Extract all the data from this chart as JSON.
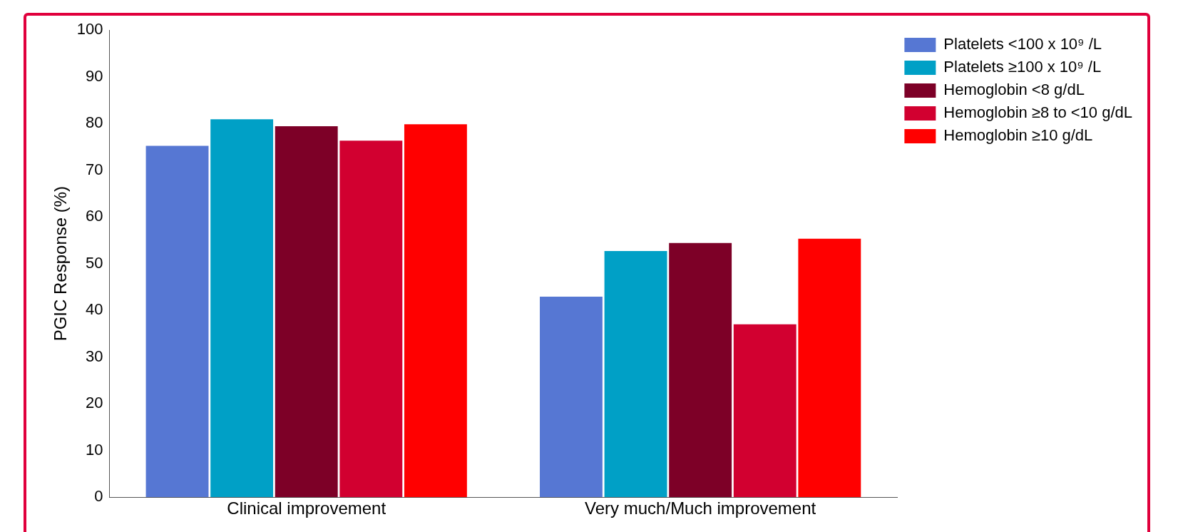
{
  "chart_data": {
    "type": "bar",
    "ylabel": "PGIC Response (%)",
    "categories": [
      "Clinical improvement",
      "Very much/Much improvement"
    ],
    "series": [
      {
        "name": "Platelets <100 x 10⁹ /L",
        "color": "#5677d3",
        "values": [
          75.2,
          42.9
        ]
      },
      {
        "name": "Platelets ≥100 x 10⁹ /L",
        "color": "#00a0c6",
        "values": [
          80.9,
          52.7
        ]
      },
      {
        "name": "Hemoglobin <8 g/dL",
        "color": "#7d0027",
        "values": [
          79.4,
          54.4
        ]
      },
      {
        "name": "Hemoglobin ≥8 to <10 g/dL",
        "color": "#d20030",
        "values": [
          76.3,
          37.0
        ]
      },
      {
        "name": "Hemoglobin ≥10 g/dL",
        "color": "#ff0000",
        "values": [
          79.8,
          55.3
        ]
      }
    ],
    "ylim": [
      0,
      100
    ],
    "yticks": [
      0,
      10,
      20,
      30,
      40,
      50,
      60,
      70,
      80,
      90,
      100
    ],
    "grid": false,
    "legend": "top right"
  }
}
